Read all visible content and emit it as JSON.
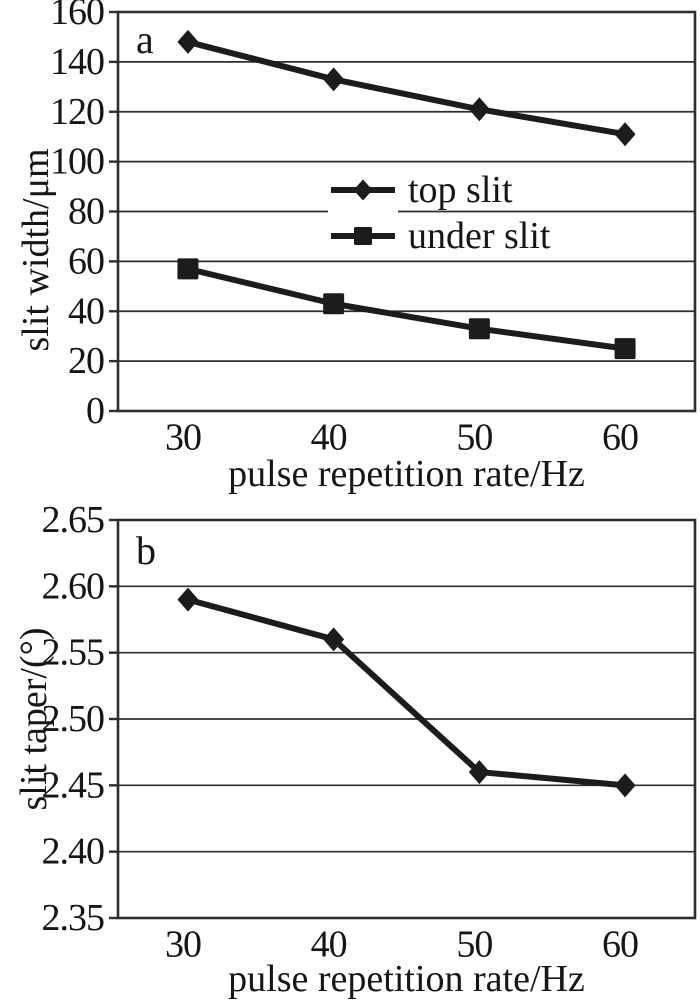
{
  "colors": {
    "ink": "#1c1c1c",
    "grid": "#2e2e2e",
    "background": "#ffffff"
  },
  "chart_data": [
    {
      "type": "line",
      "panel_label": "a",
      "title": "",
      "xlabel": "pulse repetition rate/Hz",
      "ylabel": "slit width/μm",
      "x": [
        30,
        40,
        50,
        60
      ],
      "xticks": [
        "30",
        "40",
        "50",
        "60"
      ],
      "xlim": [
        25.2,
        64.8
      ],
      "ylim": [
        0,
        160
      ],
      "yticks": [
        160,
        140,
        120,
        100,
        80,
        60,
        40,
        20,
        0
      ],
      "ytick_labels": [
        "160",
        "140",
        "120",
        "100",
        "80",
        "60",
        "40",
        "20",
        "0"
      ],
      "grid": true,
      "legend": {
        "position": "inside-top-center",
        "entries": [
          "top slit",
          "under slit"
        ]
      },
      "series": [
        {
          "name": "top slit",
          "marker": "diamond",
          "values": [
            148,
            133,
            121,
            111
          ]
        },
        {
          "name": "under slit",
          "marker": "square",
          "values": [
            57,
            43,
            33,
            25
          ]
        }
      ]
    },
    {
      "type": "line",
      "panel_label": "b",
      "title": "",
      "xlabel": "pulse repetition rate/Hz",
      "ylabel": "slit taper/(°)",
      "x": [
        30,
        40,
        50,
        60
      ],
      "xticks": [
        "30",
        "40",
        "50",
        "60"
      ],
      "xlim": [
        25.2,
        64.8
      ],
      "ylim": [
        2.35,
        2.65
      ],
      "yticks": [
        2.65,
        2.6,
        2.55,
        2.5,
        2.45,
        2.4,
        2.35
      ],
      "ytick_labels": [
        "2.65",
        "2.60",
        "2.55",
        "2.50",
        "2.45",
        "2.40",
        "2.35"
      ],
      "grid": true,
      "legend": null,
      "series": [
        {
          "name": "slit taper",
          "marker": "diamond",
          "values": [
            2.59,
            2.56,
            2.46,
            2.45
          ]
        }
      ]
    }
  ]
}
